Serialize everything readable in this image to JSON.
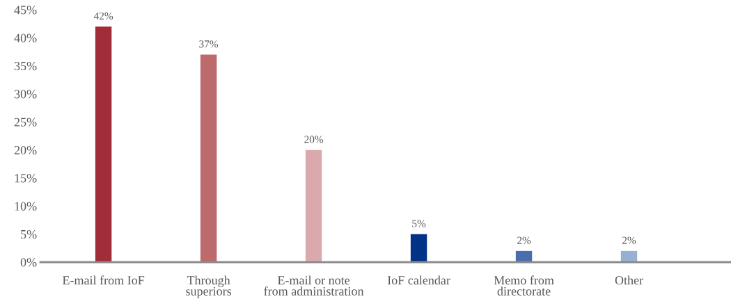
{
  "chart_data": {
    "type": "bar",
    "categories": [
      "E-mail from IoF",
      "Through\nsuperiors",
      "E-mail or note\nfrom administration",
      "IoF calendar",
      "Memo from\ndirectorate",
      "Other"
    ],
    "values": [
      42,
      37,
      20,
      5,
      2,
      2
    ],
    "colors": [
      "#a02d37",
      "#bc6a6d",
      "#d9a9ac",
      "#003387",
      "#4a6dac",
      "#97afd2"
    ],
    "value_labels": [
      "42%",
      "37%",
      "20%",
      "5%",
      "2%",
      "2%"
    ],
    "ylim": [
      0,
      45
    ],
    "yticks": [
      {
        "value": 0,
        "label": "0%"
      },
      {
        "value": 5,
        "label": "5%"
      },
      {
        "value": 10,
        "label": "10%"
      },
      {
        "value": 15,
        "label": "15%"
      },
      {
        "value": 20,
        "label": "20%"
      },
      {
        "value": 25,
        "label": "25%"
      },
      {
        "value": 30,
        "label": "30%"
      },
      {
        "value": 35,
        "label": "35%"
      },
      {
        "value": 40,
        "label": "40%"
      },
      {
        "value": 45,
        "label": "45%"
      }
    ],
    "grid": false
  }
}
